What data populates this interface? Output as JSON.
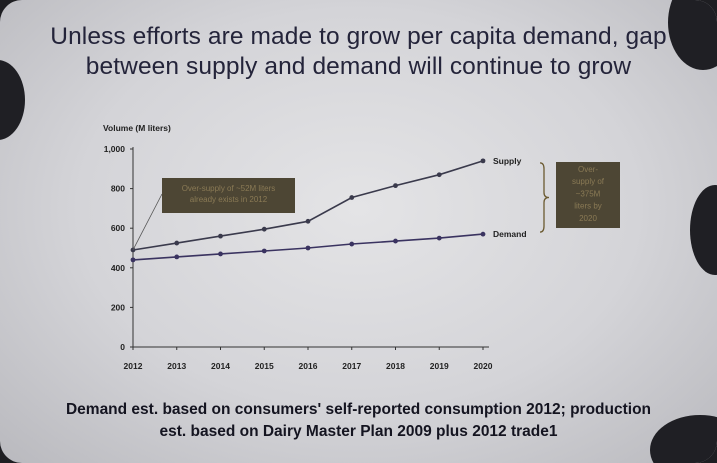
{
  "slide": {
    "title_lines": [
      "Unless efforts are made to grow per capita demand, gap",
      "between supply and demand will continue to grow"
    ],
    "footnote_lines": [
      "Demand est. based on consumers' self-reported consumption 2012; production",
      "est. based on Dairy Master Plan 2009 plus 2012 trade1"
    ]
  },
  "chart_data": {
    "type": "line",
    "title": "",
    "xlabel": "",
    "ylabel": "Volume (M liters)",
    "x": [
      "2012",
      "2013",
      "2014",
      "2015",
      "2016",
      "2017",
      "2018",
      "2019",
      "2020"
    ],
    "ylim": [
      0,
      1000
    ],
    "yticks": [
      "0",
      "200",
      "400",
      "600",
      "800",
      "1,000"
    ],
    "grid": false,
    "series": [
      {
        "name": "Supply",
        "values": [
          490,
          525,
          560,
          595,
          635,
          755,
          815,
          870,
          940
        ],
        "color": "#3a3a4c"
      },
      {
        "name": "Demand",
        "values": [
          440,
          455,
          470,
          485,
          500,
          520,
          535,
          550,
          570
        ],
        "color": "#3a3360"
      }
    ],
    "annotations": [
      {
        "text_lines": [
          "Over-supply of ~52M liters",
          "already exists in 2012"
        ]
      },
      {
        "text_lines": [
          "Over-",
          "supply of",
          "~375M",
          "liters by",
          "2020"
        ]
      }
    ]
  },
  "colors": {
    "slide_bg": "#d9d9dc",
    "callout_fill": "#4d4634",
    "callout_text": "#8a7a55",
    "bracket": "#6b5a30"
  }
}
